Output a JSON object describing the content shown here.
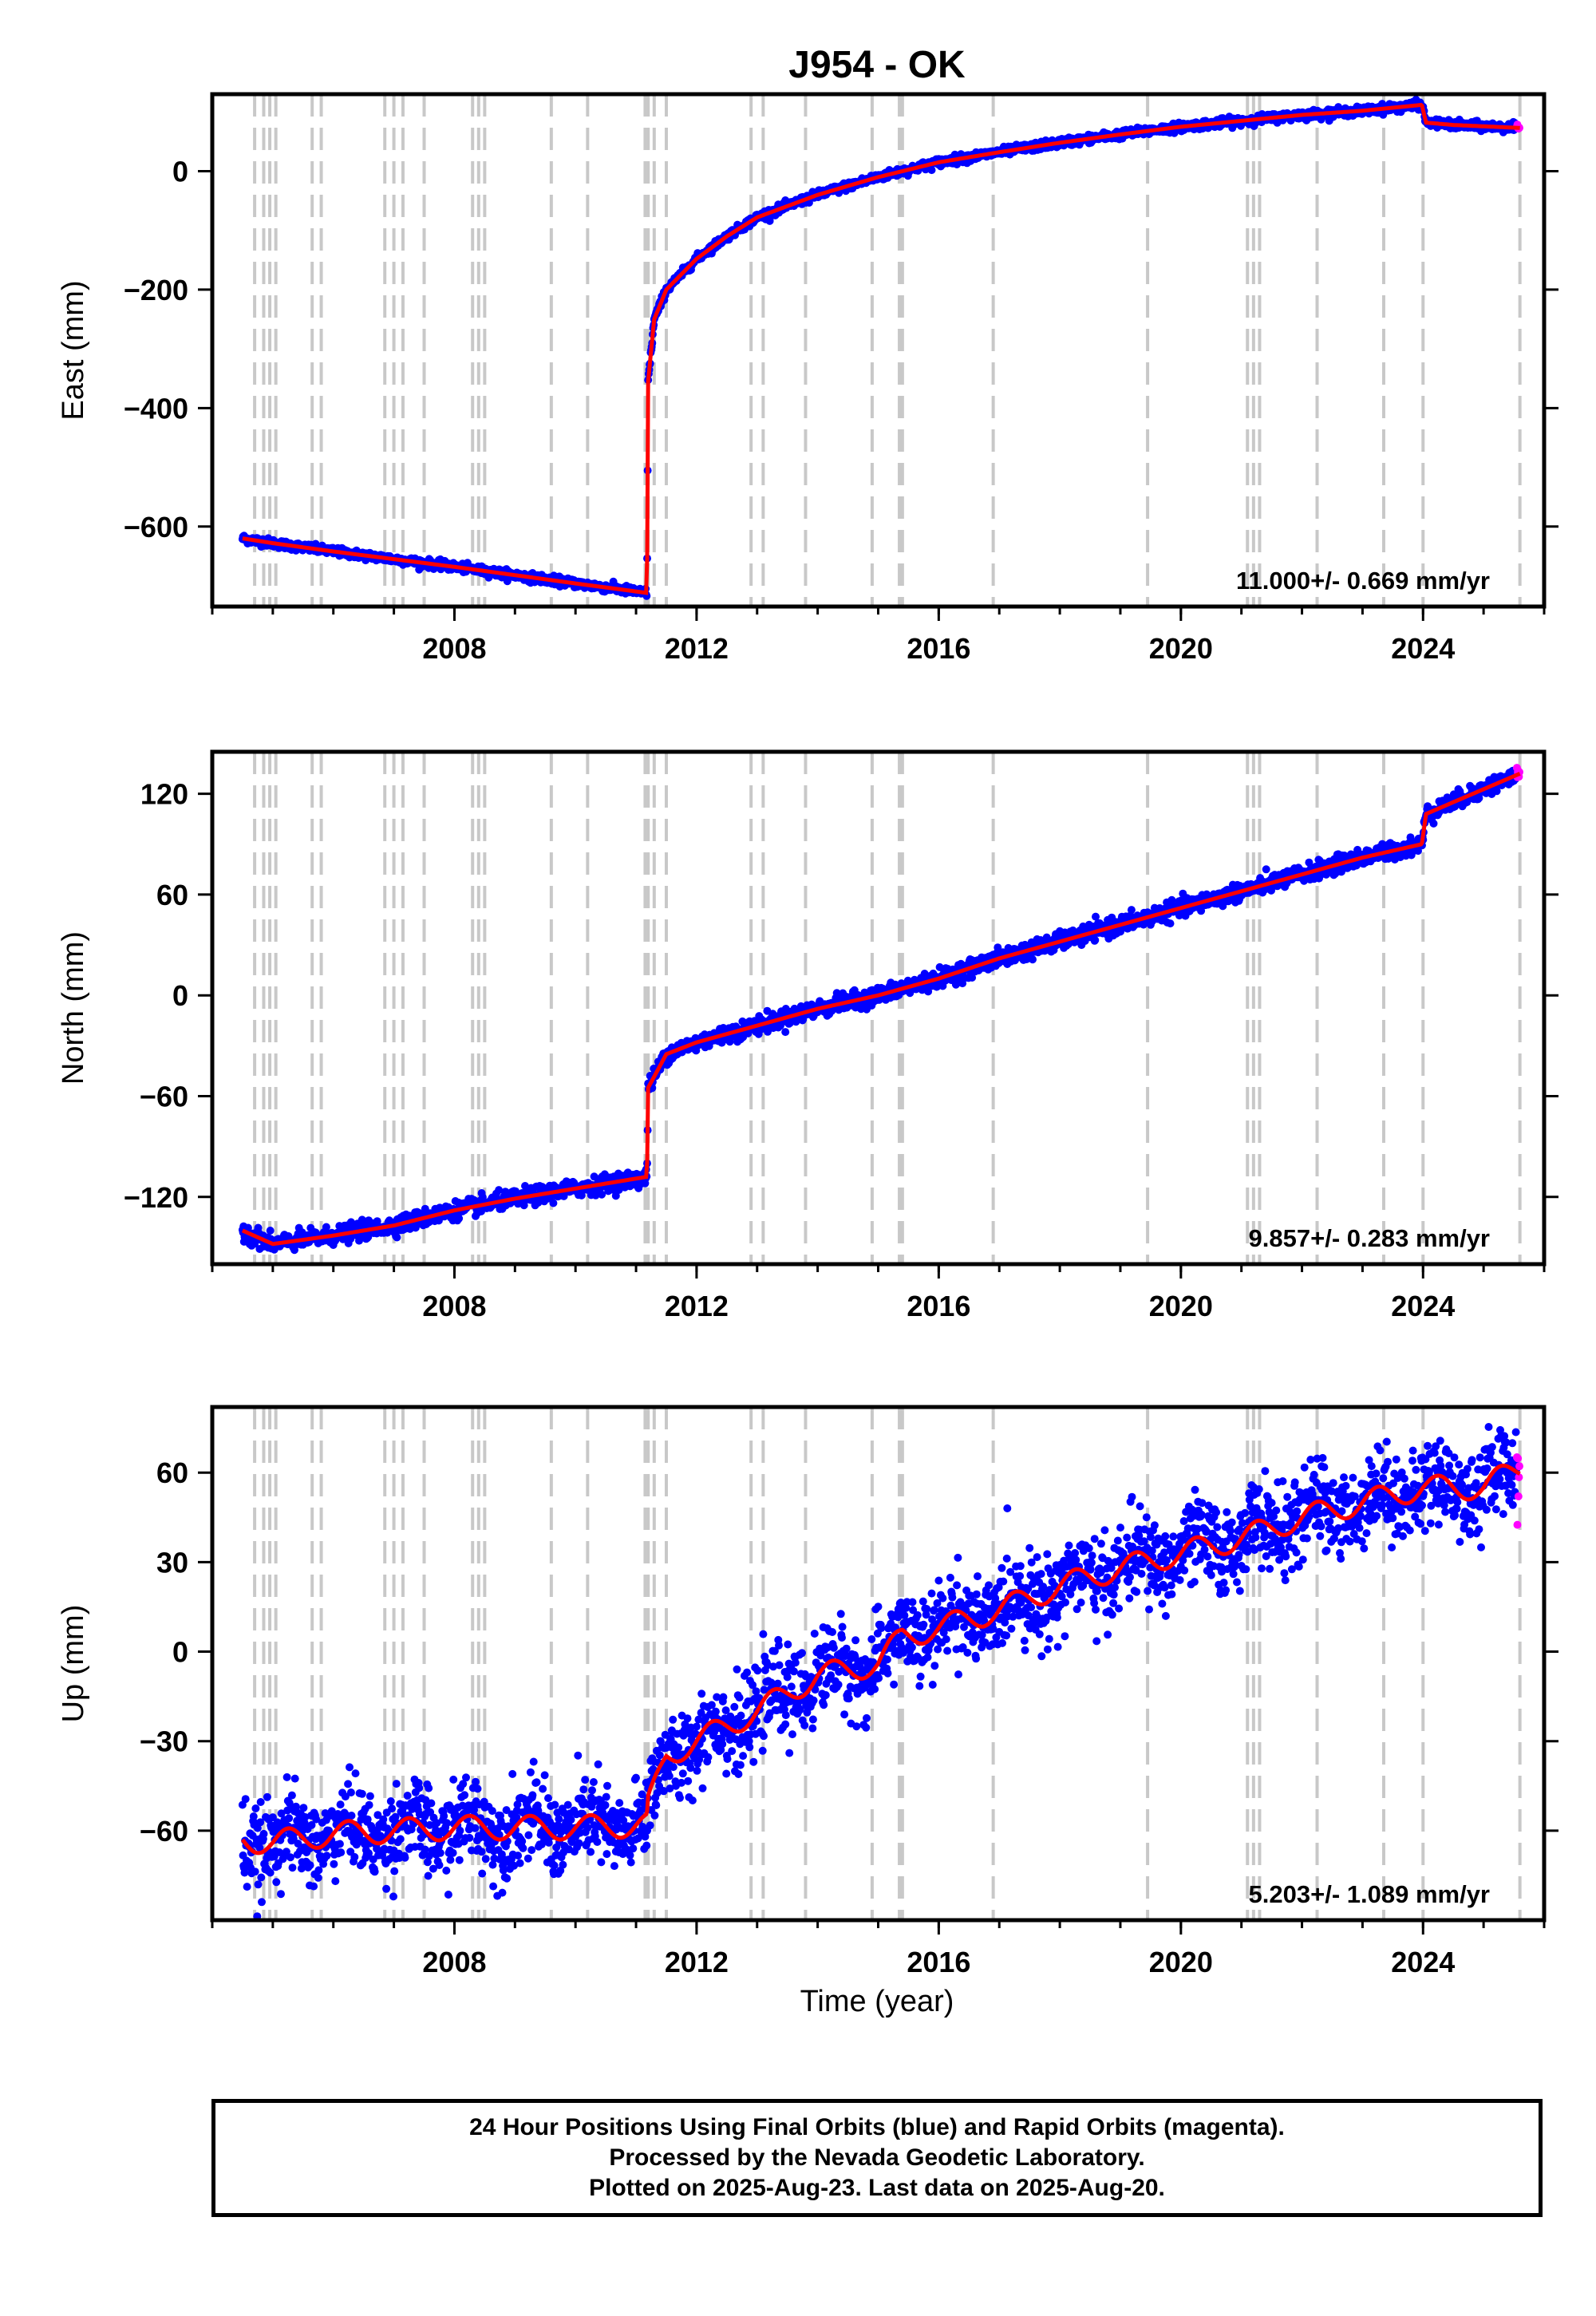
{
  "title": "J954 - OK",
  "x_axis_label": "Time (year)",
  "footer": {
    "line1": "24 Hour Positions Using Final Orbits (blue) and Rapid Orbits (magenta).",
    "line2": "Processed by the Nevada Geodetic Laboratory.",
    "line3": "Plotted on 2025-Aug-23. Last data on 2025-Aug-20."
  },
  "colors": {
    "final_orbits": "#0000ff",
    "rapid_orbits": "#ff00ff",
    "model": "#ff0000",
    "event_lines": "#c8c8c8"
  },
  "event_lines_years": [
    2004.7,
    2004.85,
    2004.95,
    2005.05,
    2005.65,
    2005.8,
    2006.85,
    2007.0,
    2007.15,
    2007.5,
    2008.3,
    2008.4,
    2008.5,
    2009.6,
    2010.2,
    2011.15,
    2011.2,
    2011.3,
    2011.5,
    2012.9,
    2013.1,
    2013.8,
    2014.9,
    2015.35,
    2015.4,
    2016.9,
    2019.45,
    2021.1,
    2021.2,
    2021.3,
    2022.25,
    2023.35,
    2024.0,
    2025.6
  ],
  "chart_data": [
    {
      "type": "scatter",
      "name": "east",
      "ylabel": "East (mm)",
      "rate_annotation": "11.000+/- 0.669 mm/yr",
      "xlim": [
        2004.0,
        2026.0
      ],
      "ylim": [
        -735,
        130
      ],
      "x_ticks": [
        2008,
        2012,
        2016,
        2020,
        2024
      ],
      "y_ticks": [
        -600,
        -400,
        -200,
        0
      ],
      "trend_points": [
        [
          2004.5,
          -620
        ],
        [
          2005.0,
          -628
        ],
        [
          2006.0,
          -642
        ],
        [
          2007.0,
          -655
        ],
        [
          2008.0,
          -668
        ],
        [
          2009.0,
          -682
        ],
        [
          2010.0,
          -696
        ],
        [
          2011.18,
          -712
        ],
        [
          2011.2,
          -355
        ],
        [
          2011.3,
          -250
        ],
        [
          2011.5,
          -200
        ],
        [
          2012.0,
          -148
        ],
        [
          2012.5,
          -110
        ],
        [
          2013.0,
          -78
        ],
        [
          2014.0,
          -40
        ],
        [
          2015.0,
          -10
        ],
        [
          2016.0,
          15
        ],
        [
          2017.0,
          32
        ],
        [
          2018.0,
          48
        ],
        [
          2019.0,
          62
        ],
        [
          2020.0,
          75
        ],
        [
          2021.0,
          85
        ],
        [
          2022.0,
          95
        ],
        [
          2023.0,
          102
        ],
        [
          2023.98,
          112
        ],
        [
          2024.05,
          82
        ],
        [
          2024.5,
          78
        ],
        [
          2025.6,
          73
        ]
      ],
      "noise_mm": 3.5,
      "rapid_start_year": 2025.55
    },
    {
      "type": "scatter",
      "name": "north",
      "ylabel": "North (mm)",
      "rate_annotation": "9.857+/- 0.283 mm/yr",
      "xlim": [
        2004.0,
        2026.0
      ],
      "ylim": [
        -160,
        145
      ],
      "x_ticks": [
        2008,
        2012,
        2016,
        2020,
        2024
      ],
      "y_ticks": [
        -120,
        -60,
        0,
        60,
        120
      ],
      "trend_points": [
        [
          2004.5,
          -140
        ],
        [
          2005.0,
          -148
        ],
        [
          2006.0,
          -143
        ],
        [
          2007.0,
          -137
        ],
        [
          2008.0,
          -128
        ],
        [
          2009.0,
          -121
        ],
        [
          2010.0,
          -115
        ],
        [
          2011.18,
          -108
        ],
        [
          2011.2,
          -55
        ],
        [
          2011.5,
          -35
        ],
        [
          2012.0,
          -28
        ],
        [
          2013.0,
          -18
        ],
        [
          2014.0,
          -8
        ],
        [
          2015.0,
          0
        ],
        [
          2016.0,
          10
        ],
        [
          2017.0,
          22
        ],
        [
          2018.0,
          32
        ],
        [
          2019.0,
          42
        ],
        [
          2020.0,
          52
        ],
        [
          2021.0,
          62
        ],
        [
          2022.0,
          72
        ],
        [
          2023.0,
          82
        ],
        [
          2023.98,
          90
        ],
        [
          2024.05,
          108
        ],
        [
          2024.5,
          115
        ],
        [
          2025.6,
          132
        ]
      ],
      "noise_mm": 2.5,
      "rapid_start_year": 2025.55
    },
    {
      "type": "scatter",
      "name": "up",
      "ylabel": "Up (mm)",
      "rate_annotation": "5.203+/- 1.089 mm/yr",
      "xlim": [
        2004.0,
        2026.0
      ],
      "ylim": [
        -90,
        82
      ],
      "x_ticks": [
        2008,
        2012,
        2016,
        2020,
        2024
      ],
      "y_ticks": [
        -60,
        -30,
        0,
        30,
        60
      ],
      "trend_points": [
        [
          2004.5,
          -63
        ],
        [
          2005.0,
          -64
        ],
        [
          2006.0,
          -61
        ],
        [
          2007.0,
          -60
        ],
        [
          2008.0,
          -59
        ],
        [
          2009.0,
          -59
        ],
        [
          2010.0,
          -59
        ],
        [
          2011.18,
          -58
        ],
        [
          2011.2,
          -52
        ],
        [
          2011.5,
          -35
        ],
        [
          2012.0,
          -30
        ],
        [
          2013.0,
          -20
        ],
        [
          2014.0,
          -8
        ],
        [
          2015.0,
          -4
        ],
        [
          2015.4,
          5
        ],
        [
          2016.0,
          8
        ],
        [
          2017.0,
          14
        ],
        [
          2018.0,
          22
        ],
        [
          2019.0,
          28
        ],
        [
          2020.0,
          33
        ],
        [
          2021.0,
          38
        ],
        [
          2022.0,
          45
        ],
        [
          2023.0,
          50
        ],
        [
          2024.0,
          55
        ],
        [
          2025.0,
          55
        ],
        [
          2025.6,
          62
        ]
      ],
      "noise_mm": 7,
      "seasonal_amp_mm": 4,
      "rapid_start_year": 2025.55
    }
  ]
}
